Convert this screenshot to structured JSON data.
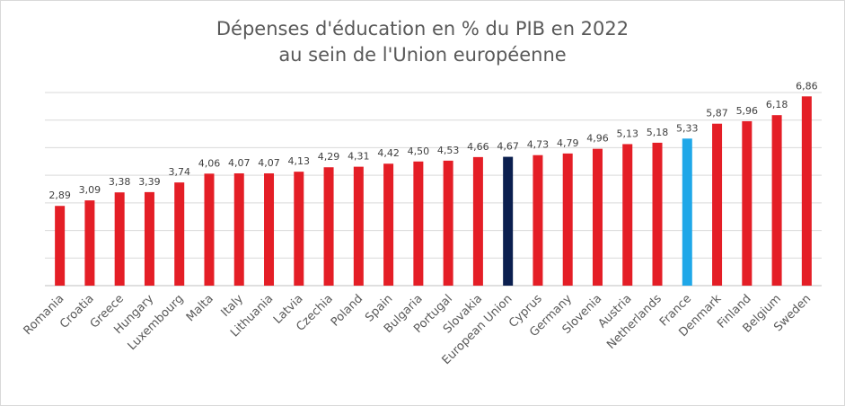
{
  "chart_data": {
    "type": "bar",
    "title": "Dépenses d'éducation en % du PIB en 2022",
    "subtitle": "au sein de l'Union européenne",
    "xlabel": "",
    "ylabel": "",
    "ylim": [
      0,
      7
    ],
    "grid": true,
    "legend": "none",
    "categories": [
      "Romania",
      "Croatia",
      "Greece",
      "Hungary",
      "Luxembourg",
      "Malta",
      "Italy",
      "Lithuania",
      "Latvia",
      "Czechia",
      "Poland",
      "Spain",
      "Bulgaria",
      "Portugal",
      "Slovakia",
      "European Union",
      "Cyprus",
      "Germany",
      "Slovenia",
      "Austria",
      "Netherlands",
      "France",
      "Denmark",
      "Finland",
      "Belgium",
      "Sweden"
    ],
    "values": [
      2.89,
      3.09,
      3.38,
      3.39,
      3.74,
      4.06,
      4.07,
      4.07,
      4.13,
      4.29,
      4.31,
      4.42,
      4.5,
      4.53,
      4.66,
      4.67,
      4.73,
      4.79,
      4.96,
      5.13,
      5.18,
      5.33,
      5.87,
      5.96,
      6.18,
      6.86
    ],
    "value_labels": [
      "2,89",
      "3,09",
      "3,38",
      "3,39",
      "3,74",
      "4,06",
      "4,07",
      "4,07",
      "4,13",
      "4,29",
      "4,31",
      "4,42",
      "4,50",
      "4,53",
      "4,66",
      "4,67",
      "4,73",
      "4,79",
      "4,96",
      "5,13",
      "5,18",
      "5,33",
      "5,87",
      "5,96",
      "6,18",
      "6,86"
    ],
    "colors": {
      "default": "#e41e26",
      "European Union": "#0b1f4f",
      "France": "#1fa7e8",
      "grid": "#d9d9d9"
    }
  }
}
